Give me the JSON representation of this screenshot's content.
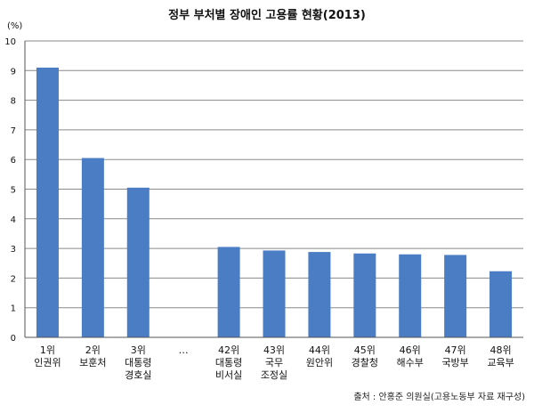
{
  "chart_data": {
    "type": "bar",
    "title": "정부 부처별 장애인 고용률 현황(2013)",
    "unit": "(%)",
    "categories": [
      [
        "1위",
        "인권위"
      ],
      [
        "2위",
        "보훈처"
      ],
      [
        "3위",
        "대통령",
        "경호실"
      ],
      [
        "…"
      ],
      [
        "42위",
        "대통령",
        "비서실"
      ],
      [
        "43위",
        "국무",
        "조정실"
      ],
      [
        "44위",
        "원안위"
      ],
      [
        "45위",
        "경찰청"
      ],
      [
        "46위",
        "해수부"
      ],
      [
        "47위",
        "국방부"
      ],
      [
        "48위",
        "교육부"
      ]
    ],
    "values": [
      9.1,
      6.05,
      5.05,
      null,
      3.05,
      2.93,
      2.88,
      2.83,
      2.8,
      2.78,
      2.23
    ],
    "ylim": [
      0,
      10
    ],
    "yticks": [
      "0",
      "1",
      "2",
      "3",
      "4",
      "5",
      "6",
      "7",
      "8",
      "9",
      "10"
    ],
    "grid": true,
    "bar_color": "#4a7dc4",
    "source": "출처 : 안홍준 의원실(고용노동부 자료 재구성)"
  }
}
